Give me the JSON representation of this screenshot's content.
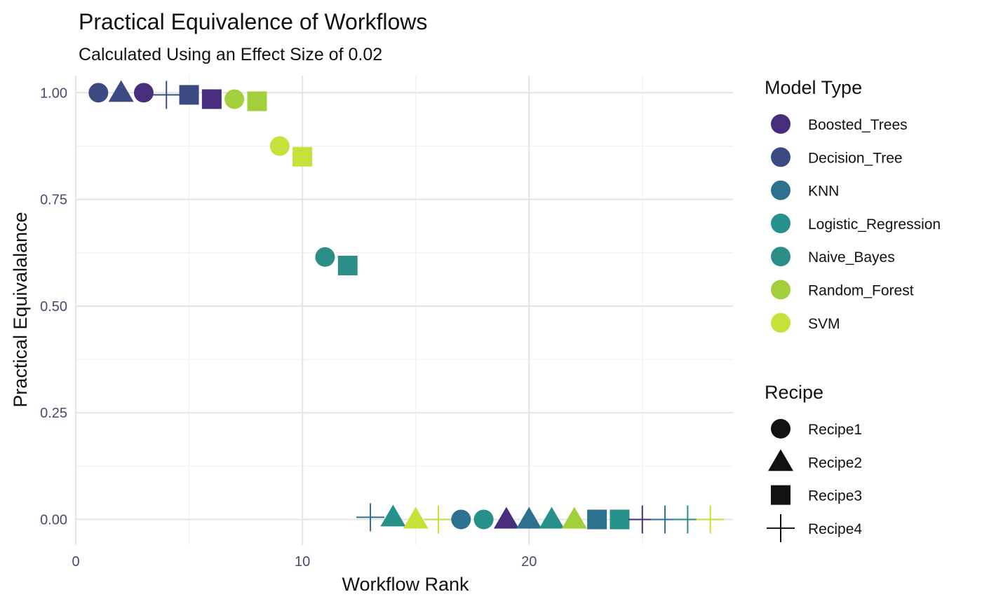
{
  "chart_data": {
    "type": "scatter",
    "title": "Practical Equivalence of Workflows",
    "subtitle": "Calculated Using an Effect Size of 0.02",
    "xlabel": "Workflow Rank",
    "ylabel": "Practical Equivalalance",
    "xlim": [
      0,
      29
    ],
    "ylim": [
      -0.06,
      1.04
    ],
    "x_ticks": [
      0,
      10,
      20
    ],
    "x_tick_labels": [
      "0",
      "10",
      "20"
    ],
    "y_ticks": [
      0,
      0.25,
      0.5,
      0.75,
      1.0
    ],
    "y_tick_labels": [
      "0.00",
      "0.25",
      "0.50",
      "0.75",
      "1.00"
    ],
    "grid": true,
    "legend_placement": "right",
    "color_legend": {
      "title": "Model Type",
      "entries": [
        {
          "label": "Boosted_Trees",
          "color": "#472d7b"
        },
        {
          "label": "Decision_Tree",
          "color": "#3b4a80"
        },
        {
          "label": "KNN",
          "color": "#2c728e"
        },
        {
          "label": "Logistic_Regression",
          "color": "#26908a"
        },
        {
          "label": "Naive_Bayes",
          "color": "#2b8f87"
        },
        {
          "label": "Random_Forest",
          "color": "#a3cf3c"
        },
        {
          "label": "SVM",
          "color": "#c8e03a"
        }
      ]
    },
    "shape_legend": {
      "title": "Recipe",
      "entries": [
        {
          "label": "Recipe1",
          "shape": "circle"
        },
        {
          "label": "Recipe2",
          "shape": "triangle"
        },
        {
          "label": "Recipe3",
          "shape": "square"
        },
        {
          "label": "Recipe4",
          "shape": "plus"
        }
      ]
    },
    "points": [
      {
        "rank": 1,
        "value": 1.0,
        "model": "Decision_Tree",
        "recipe": "Recipe1"
      },
      {
        "rank": 2,
        "value": 1.0,
        "model": "Decision_Tree",
        "recipe": "Recipe2"
      },
      {
        "rank": 3,
        "value": 1.0,
        "model": "Boosted_Trees",
        "recipe": "Recipe1"
      },
      {
        "rank": 4,
        "value": 0.995,
        "model": "Decision_Tree",
        "recipe": "Recipe4"
      },
      {
        "rank": 5,
        "value": 0.995,
        "model": "Decision_Tree",
        "recipe": "Recipe3"
      },
      {
        "rank": 6,
        "value": 0.985,
        "model": "Boosted_Trees",
        "recipe": "Recipe3"
      },
      {
        "rank": 7,
        "value": 0.985,
        "model": "Random_Forest",
        "recipe": "Recipe1"
      },
      {
        "rank": 8,
        "value": 0.98,
        "model": "Random_Forest",
        "recipe": "Recipe3"
      },
      {
        "rank": 9,
        "value": 0.875,
        "model": "SVM",
        "recipe": "Recipe1"
      },
      {
        "rank": 10,
        "value": 0.85,
        "model": "SVM",
        "recipe": "Recipe3"
      },
      {
        "rank": 11,
        "value": 0.615,
        "model": "Naive_Bayes",
        "recipe": "Recipe1"
      },
      {
        "rank": 12,
        "value": 0.595,
        "model": "Naive_Bayes",
        "recipe": "Recipe3"
      },
      {
        "rank": 13,
        "value": 0.005,
        "model": "KNN",
        "recipe": "Recipe4"
      },
      {
        "rank": 14,
        "value": 0.005,
        "model": "Logistic_Regression",
        "recipe": "Recipe2"
      },
      {
        "rank": 15,
        "value": 0.0,
        "model": "SVM",
        "recipe": "Recipe2"
      },
      {
        "rank": 16,
        "value": 0.0,
        "model": "SVM",
        "recipe": "Recipe4"
      },
      {
        "rank": 17,
        "value": 0.0,
        "model": "KNN",
        "recipe": "Recipe1"
      },
      {
        "rank": 18,
        "value": 0.0,
        "model": "Logistic_Regression",
        "recipe": "Recipe1"
      },
      {
        "rank": 19,
        "value": 0.0,
        "model": "Boosted_Trees",
        "recipe": "Recipe2"
      },
      {
        "rank": 20,
        "value": 0.0,
        "model": "KNN",
        "recipe": "Recipe2"
      },
      {
        "rank": 21,
        "value": 0.0,
        "model": "Logistic_Regression",
        "recipe": "Recipe2"
      },
      {
        "rank": 22,
        "value": 0.0,
        "model": "Random_Forest",
        "recipe": "Recipe2"
      },
      {
        "rank": 23,
        "value": 0.0,
        "model": "KNN",
        "recipe": "Recipe3"
      },
      {
        "rank": 24,
        "value": 0.0,
        "model": "Logistic_Regression",
        "recipe": "Recipe3"
      },
      {
        "rank": 25,
        "value": 0.0,
        "model": "Boosted_Trees",
        "recipe": "Recipe4"
      },
      {
        "rank": 26,
        "value": 0.0,
        "model": "KNN",
        "recipe": "Recipe4"
      },
      {
        "rank": 27,
        "value": 0.0,
        "model": "Logistic_Regression",
        "recipe": "Recipe4"
      },
      {
        "rank": 28,
        "value": 0.0,
        "model": "SVM",
        "recipe": "Recipe4"
      }
    ]
  }
}
